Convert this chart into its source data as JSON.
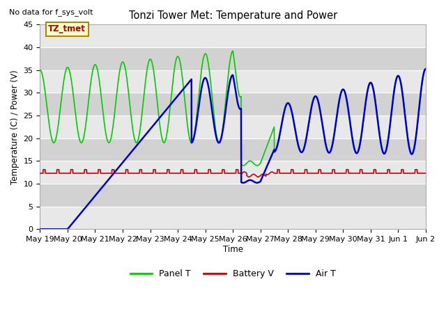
{
  "title": "Tonzi Tower Met: Temperature and Power",
  "top_left_text": "No data for f_sys_volt",
  "ylabel": "Temperature (C) / Power (V)",
  "xlabel": "Time",
  "ylim": [
    0,
    45
  ],
  "xlim": [
    0,
    14
  ],
  "x_tick_labels": [
    "May 19",
    "May 20",
    "May 21",
    "May 22",
    "May 23",
    "May 24",
    "May 25",
    "May 26",
    "May 27",
    "May 28",
    "May 29",
    "May 30",
    "May 31",
    "Jun 1",
    "Jun 2"
  ],
  "background_color": "#dcdcdc",
  "plot_bg_color": "#dcdcdc",
  "panel_color": "#00cc00",
  "battery_color": "#cc0000",
  "air_color": "#0000cc",
  "annotation_text": "TZ_tmet",
  "annotation_bg": "#ffffcc",
  "annotation_border": "#aa8800"
}
